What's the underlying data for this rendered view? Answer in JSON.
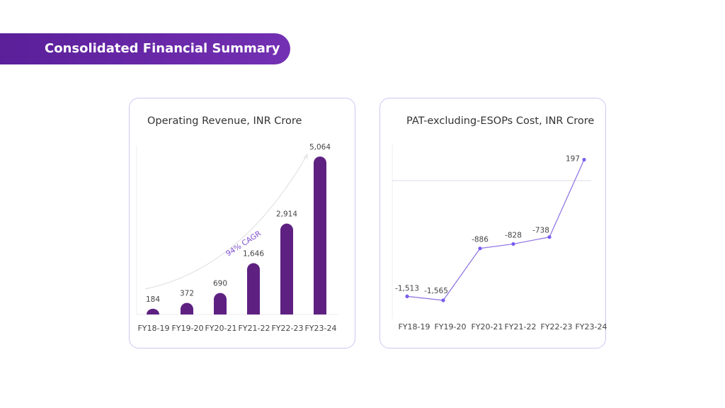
{
  "title": "Consolidated Financial Summary",
  "chart_data": [
    {
      "type": "bar",
      "title": "Operating Revenue, INR Crore",
      "categories": [
        "FY18-19",
        "FY19-20",
        "FY20-21",
        "FY21-22",
        "FY22-23",
        "FY23-24"
      ],
      "values": [
        184,
        372,
        690,
        1646,
        2914,
        5064
      ],
      "data_labels": [
        "184",
        "372",
        "690",
        "1,646",
        "2,914",
        "5,064"
      ],
      "annotation": "94% CAGR",
      "color": "#5e2182",
      "ylim": [
        0,
        5064
      ]
    },
    {
      "type": "line",
      "title": "PAT-excluding-ESOPs Cost, INR Crore",
      "categories": [
        "FY18-19",
        "FY19-20",
        "FY20-21",
        "FY21-22",
        "FY22-23",
        "FY23-24"
      ],
      "values": [
        -1513,
        -1565,
        -886,
        -828,
        -738,
        197
      ],
      "data_labels": [
        "-1,513",
        "-1,565",
        "-886",
        "-828",
        "-738",
        "197"
      ],
      "color": "#8a6ee0",
      "marker_color": "#7b5cf0",
      "zero_line": true
    }
  ]
}
